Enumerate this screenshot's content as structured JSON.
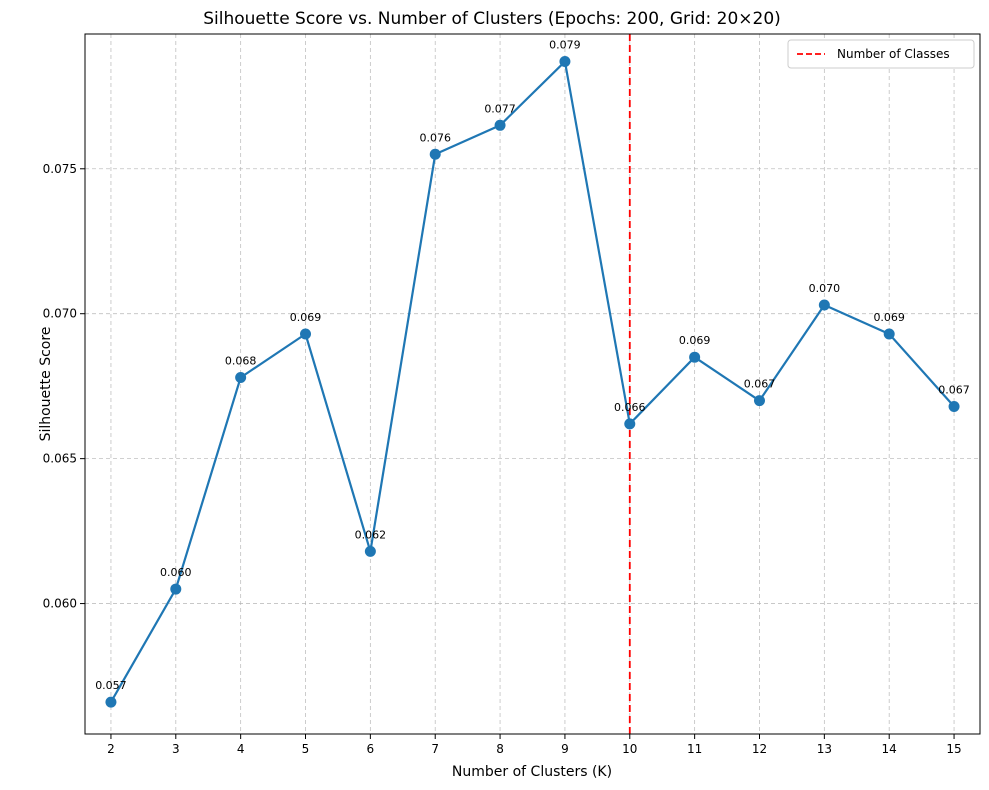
{
  "chart_data": {
    "type": "line",
    "title": "Silhouette Score vs. Number of Clusters (Epochs: 200, Grid: 20×20)",
    "xlabel": "Number of Clusters (K)",
    "ylabel": "Silhouette Score",
    "x": [
      2,
      3,
      4,
      5,
      6,
      7,
      8,
      9,
      10,
      11,
      12,
      13,
      14,
      15
    ],
    "series": [
      {
        "values": [
          0.0566,
          0.0605,
          0.0678,
          0.0693,
          0.0618,
          0.0755,
          0.0765,
          0.0787,
          0.0662,
          0.0685,
          0.067,
          0.0703,
          0.0693,
          0.0668
        ],
        "data_labels": [
          "0.057",
          "0.060",
          "0.068",
          "0.069",
          "0.062",
          "0.076",
          "0.077",
          "0.079",
          "0.066",
          "0.069",
          "0.067",
          "0.070",
          "0.069",
          "0.067"
        ],
        "color": "#1f77b4"
      }
    ],
    "xlim": [
      1.6,
      15.4
    ],
    "ylim": [
      0.0555,
      0.07965
    ],
    "xticks": [
      2,
      3,
      4,
      5,
      6,
      7,
      8,
      9,
      10,
      11,
      12,
      13,
      14,
      15
    ],
    "yticks": [
      0.06,
      0.065,
      0.07,
      0.075
    ],
    "ytick_labels": [
      "0.060",
      "0.065",
      "0.070",
      "0.075"
    ],
    "reference_line": {
      "x": 10,
      "label": "Number of Classes",
      "color": "#ff0000",
      "style": "dashed"
    },
    "grid": true,
    "legend": {
      "position": "top-right",
      "entries": [
        "Number of Classes"
      ]
    }
  }
}
